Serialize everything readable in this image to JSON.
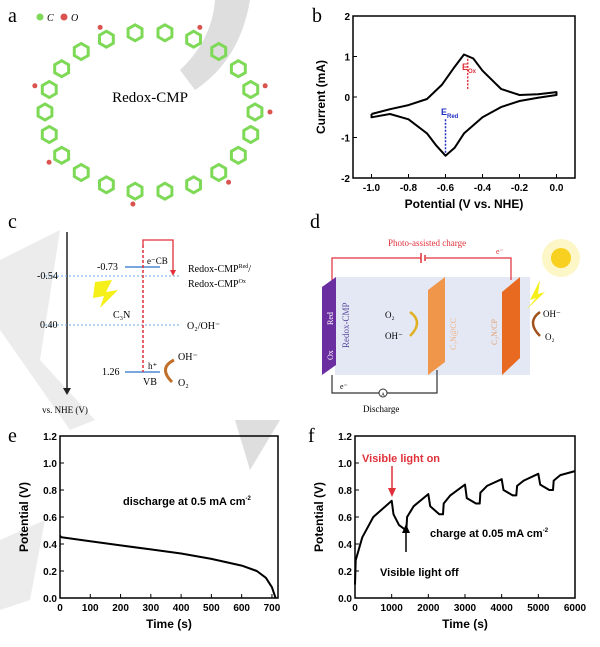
{
  "panels": {
    "a": {
      "letter": "a",
      "legend_c": "C",
      "legend_o": "O",
      "center_label": "Redox-CMP",
      "colors": {
        "carbon": "#7ed957",
        "oxygen": "#d9534f"
      }
    },
    "b": {
      "letter": "b",
      "e_ox": "E",
      "e_ox_sub": "Ox",
      "e_red": "E",
      "e_red_sub": "Red"
    },
    "c": {
      "letter": "c",
      "axis_label": "vs. NHE (V)",
      "levels": [
        "-0.54",
        "0.40",
        "1.26",
        "-0.73"
      ],
      "cb": "e⁻CB",
      "vb": "VB",
      "h": "h⁺",
      "c3n": "C₃N",
      "redox_red": "Redox-CMP",
      "redox_red_sup": "Red",
      "redox_red_tail": "/",
      "redox_ox": "Redox-CMP",
      "redox_ox_sup": "Ox",
      "o2oh": "O₂/OH⁻",
      "oh": "OH⁻",
      "o2": "O₂"
    },
    "d": {
      "letter": "d",
      "photo_charge": "Photo-assisted charge",
      "e_top": "e⁻",
      "e_bottom": "e⁻",
      "discharge": "Discharge",
      "ox": "Ox",
      "red": "Red",
      "redox_cmp": "Redox-CMP",
      "c3n_cc": "C₃N@CC",
      "c3n_cp": "C₃N/CP",
      "o2_left": "O₂",
      "oh_left": "OH⁻",
      "oh_right": "OH⁻",
      "o2_right": "O₂",
      "ammeter": "A"
    },
    "e": {
      "letter": "e"
    },
    "f": {
      "letter": "f"
    }
  },
  "chart_data": [
    {
      "type": "line",
      "panel": "b",
      "xlabel": "Potential (V vs. NHE)",
      "ylabel": "Current (mA)",
      "xlim": [
        -1.1,
        0.1
      ],
      "ylim": [
        -2,
        2
      ],
      "xticks": [
        "-1.0",
        "-0.8",
        "-0.6",
        "-0.4",
        "-0.2",
        "0.0"
      ],
      "xtick_values": [
        -1.0,
        -0.8,
        -0.6,
        -0.4,
        -0.2,
        0.0
      ],
      "yticks": [
        "-2",
        "-1",
        "0",
        "1",
        "2"
      ],
      "ytick_values": [
        -2,
        -1,
        0,
        1,
        2
      ],
      "series": [
        {
          "color": "#000000",
          "x": [
            -1.0,
            -0.9,
            -0.8,
            -0.7,
            -0.62,
            -0.55,
            -0.5,
            -0.45,
            -0.4,
            -0.3,
            -0.2,
            -0.1,
            0.0,
            0.0,
            -0.1,
            -0.2,
            -0.3,
            -0.4,
            -0.5,
            -0.55,
            -0.6,
            -0.65,
            -0.7,
            -0.8,
            -0.9,
            -1.0,
            -1.0
          ],
          "y": [
            -0.42,
            -0.3,
            -0.2,
            -0.05,
            0.3,
            0.75,
            1.05,
            0.95,
            0.65,
            0.2,
            0.05,
            0.07,
            0.12,
            0.05,
            -0.02,
            -0.1,
            -0.25,
            -0.5,
            -0.9,
            -1.25,
            -1.45,
            -1.2,
            -0.9,
            -0.55,
            -0.42,
            -0.5,
            -0.42
          ]
        }
      ],
      "markers": [
        {
          "x": -0.48,
          "y_from": 0.2,
          "y_to": 1.05,
          "color": "#e0303a"
        },
        {
          "x": -0.6,
          "y_from": -0.55,
          "y_to": -1.45,
          "color": "#2030c0"
        }
      ]
    },
    {
      "type": "line",
      "panel": "e",
      "xlabel": "Time (s)",
      "ylabel": "Potential (V)",
      "xlim": [
        0,
        720
      ],
      "ylim": [
        0,
        1.2
      ],
      "xticks": [
        "0",
        "100",
        "200",
        "300",
        "400",
        "500",
        "600",
        "700"
      ],
      "xtick_values": [
        0,
        100,
        200,
        300,
        400,
        500,
        600,
        700
      ],
      "yticks": [
        "0.0",
        "0.2",
        "0.4",
        "0.6",
        "0.8",
        "1.0",
        "1.2"
      ],
      "ytick_values": [
        0,
        0.2,
        0.4,
        0.6,
        0.8,
        1.0,
        1.2
      ],
      "annotation": "discharge at 0.5 mA cm",
      "annotation_sup": "-2",
      "series": [
        {
          "color": "#000000",
          "x": [
            0,
            5,
            100,
            200,
            300,
            400,
            500,
            600,
            650,
            680,
            700,
            712
          ],
          "y": [
            0.46,
            0.45,
            0.42,
            0.39,
            0.36,
            0.33,
            0.29,
            0.24,
            0.2,
            0.15,
            0.08,
            0.0
          ]
        }
      ]
    },
    {
      "type": "line",
      "panel": "f",
      "xlabel": "Time (s)",
      "ylabel": "Potential (V)",
      "xlim": [
        0,
        6000
      ],
      "ylim": [
        0,
        1.2
      ],
      "xticks": [
        "0",
        "1000",
        "2000",
        "3000",
        "4000",
        "5000",
        "6000"
      ],
      "xtick_values": [
        0,
        1000,
        2000,
        3000,
        4000,
        5000,
        6000
      ],
      "yticks": [
        "0.0",
        "0.2",
        "0.4",
        "0.6",
        "0.8",
        "1.0",
        "1.2"
      ],
      "ytick_values": [
        0,
        0.2,
        0.4,
        0.6,
        0.8,
        1.0,
        1.2
      ],
      "annotation": "charge at 0.05 mA cm",
      "annotation_sup": "-2",
      "light_on": "Visible light on",
      "light_off": "Visible light off",
      "series": [
        {
          "color": "#000000",
          "x": [
            0,
            20,
            200,
            500,
            1000,
            1050,
            1200,
            1400,
            1420,
            1600,
            2000,
            2050,
            2300,
            2400,
            2420,
            2600,
            3000,
            3050,
            3300,
            3400,
            3420,
            3600,
            4000,
            4050,
            4300,
            4400,
            4420,
            4600,
            5000,
            5050,
            5300,
            5400,
            5420,
            5600,
            6000
          ],
          "y": [
            0.1,
            0.28,
            0.45,
            0.6,
            0.72,
            0.62,
            0.54,
            0.5,
            0.6,
            0.68,
            0.77,
            0.68,
            0.62,
            0.62,
            0.7,
            0.76,
            0.84,
            0.74,
            0.7,
            0.7,
            0.78,
            0.83,
            0.88,
            0.8,
            0.76,
            0.76,
            0.83,
            0.87,
            0.92,
            0.84,
            0.8,
            0.8,
            0.87,
            0.91,
            0.94
          ]
        }
      ]
    }
  ]
}
